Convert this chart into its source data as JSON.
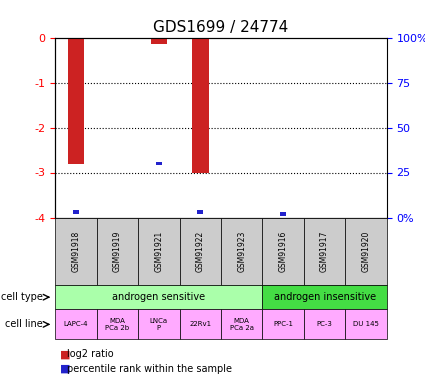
{
  "title": "GDS1699 / 24774",
  "samples": [
    "GSM91918",
    "GSM91919",
    "GSM91921",
    "GSM91922",
    "GSM91923",
    "GSM91916",
    "GSM91917",
    "GSM91920"
  ],
  "log2_ratio": [
    -2.8,
    0,
    -0.15,
    -3.0,
    0,
    0,
    0,
    0
  ],
  "percentile_rank": [
    3,
    0,
    30,
    3,
    0,
    2,
    0,
    0
  ],
  "yticks_left": [
    0,
    -1,
    -2,
    -3,
    -4
  ],
  "ytick_labels_left": [
    "0",
    "-1",
    "-2",
    "-3",
    "-4"
  ],
  "yticks_right": [
    0,
    25,
    50,
    75,
    100
  ],
  "ytick_labels_right": [
    "0%",
    "25",
    "50",
    "75",
    "100%"
  ],
  "cell_line_labels": [
    "LAPC-4",
    "MDA\nPCa 2b",
    "LNCa\nP",
    "22Rv1",
    "MDA\nPCa 2a",
    "PPC-1",
    "PC-3",
    "DU 145"
  ],
  "color_red": "#cc2222",
  "color_blue": "#2222cc",
  "color_sensitive_bg": "#aaffaa",
  "color_insensitive_bg": "#44dd44",
  "color_cell_line_bg": "#ffaaff",
  "color_gsm_bg": "#cccccc",
  "bar_width": 0.4,
  "percentile_bar_width": 0.15,
  "sensitive_count": 5,
  "insensitive_count": 3
}
